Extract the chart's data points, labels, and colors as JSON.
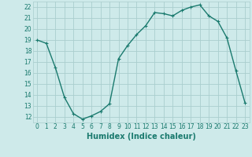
{
  "x": [
    0,
    1,
    2,
    3,
    4,
    5,
    6,
    7,
    8,
    9,
    10,
    11,
    12,
    13,
    14,
    15,
    16,
    17,
    18,
    19,
    20,
    21,
    22,
    23
  ],
  "y": [
    19.0,
    18.7,
    16.5,
    13.8,
    12.3,
    11.8,
    12.1,
    12.5,
    13.2,
    17.3,
    18.5,
    19.5,
    20.3,
    21.5,
    21.4,
    21.2,
    21.7,
    22.0,
    22.2,
    21.2,
    20.7,
    19.2,
    16.2,
    13.3
  ],
  "line_color": "#1a7a6e",
  "marker": "+",
  "marker_size": 3,
  "marker_lw": 0.8,
  "bg_color": "#ceeaea",
  "grid_color": "#aacece",
  "xlabel": "Humidex (Indice chaleur)",
  "ylim": [
    11.5,
    22.5
  ],
  "xlim": [
    -0.5,
    23.5
  ],
  "yticks": [
    12,
    13,
    14,
    15,
    16,
    17,
    18,
    19,
    20,
    21,
    22
  ],
  "xticks": [
    0,
    1,
    2,
    3,
    4,
    5,
    6,
    7,
    8,
    9,
    10,
    11,
    12,
    13,
    14,
    15,
    16,
    17,
    18,
    19,
    20,
    21,
    22,
    23
  ],
  "tick_fontsize": 5.5,
  "label_fontsize": 7,
  "line_width": 1.0
}
